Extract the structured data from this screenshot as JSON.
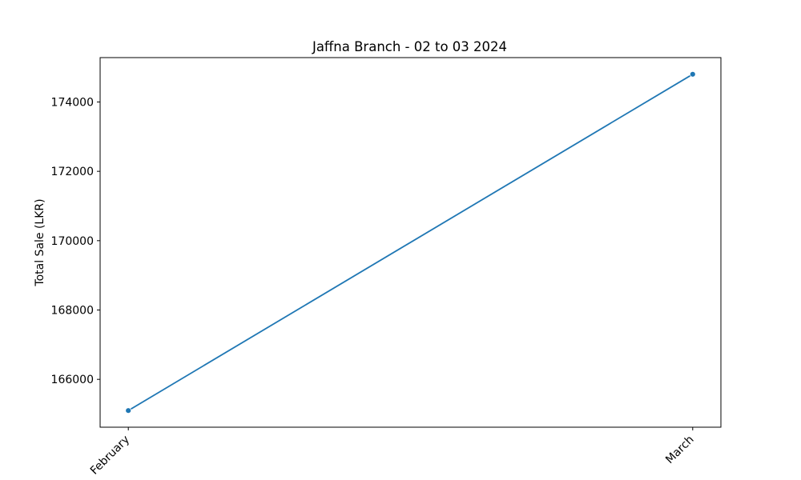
{
  "chart_data": {
    "type": "line",
    "title": "Jaffna Branch - 02 to 03 2024",
    "xlabel": "",
    "ylabel": "Total Sale (LKR)",
    "categories": [
      "February",
      "March"
    ],
    "series": [
      {
        "values": [
          165100,
          174800
        ],
        "color": "#1f77b4",
        "marker": "circle"
      }
    ],
    "ylim": [
      164620,
      175280
    ],
    "yticks": [
      166000,
      168000,
      170000,
      172000,
      174000
    ],
    "ytick_labels": [
      "166000",
      "168000",
      "170000",
      "172000",
      "174000"
    ],
    "grid": false,
    "legend": "none"
  }
}
